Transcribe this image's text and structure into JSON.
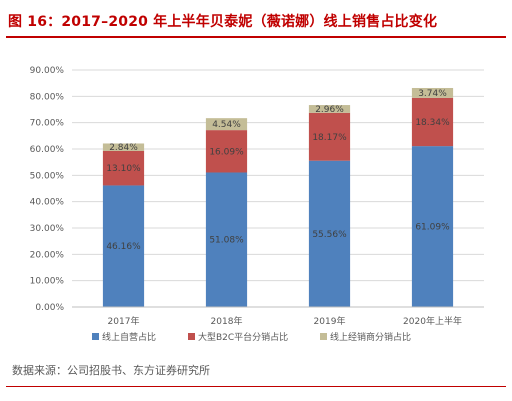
{
  "figure": {
    "title": "图 16：2017–2020 年上半年贝泰妮（薇诺娜）线上销售占比变化",
    "source": "数据来源：公司招股书、东方证券研究所"
  },
  "chart_data": {
    "type": "bar",
    "stacked": true,
    "categories": [
      "2017年",
      "2018年",
      "2019年",
      "2020年上半年"
    ],
    "series": [
      {
        "name": "线上自营占比",
        "color": "#4f81bd",
        "values": [
          46.16,
          51.08,
          55.56,
          61.09
        ],
        "labels": [
          "46.16%",
          "51.08%",
          "55.56%",
          "61.09%"
        ]
      },
      {
        "name": "大型B2C平台分销占比",
        "color": "#c0504d",
        "values": [
          13.1,
          16.09,
          18.17,
          18.34
        ],
        "labels": [
          "13.10%",
          "16.09%",
          "18.17%",
          "18.34%"
        ]
      },
      {
        "name": "线上经销商分销占比",
        "color": "#c4bd97",
        "values": [
          2.84,
          4.54,
          2.96,
          3.74
        ],
        "labels": [
          "2.84%",
          "4.54%",
          "2.96%",
          "3.74%"
        ]
      }
    ],
    "ylim": [
      0,
      90
    ],
    "yticks": [
      "0.00%",
      "10.00%",
      "20.00%",
      "30.00%",
      "40.00%",
      "50.00%",
      "60.00%",
      "70.00%",
      "80.00%",
      "90.00%"
    ],
    "grid": true,
    "legend": "bottom"
  }
}
